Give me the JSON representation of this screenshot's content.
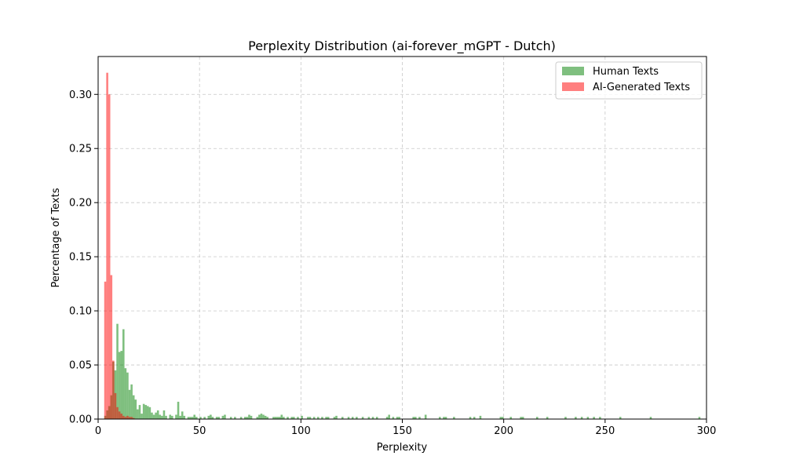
{
  "chart_data": {
    "type": "bar",
    "title": "Perplexity Distribution (ai-forever_mGPT - Dutch)",
    "xlabel": "Perplexity",
    "ylabel": "Percentage of Texts",
    "xlim": [
      0,
      300
    ],
    "ylim": [
      0,
      0.335
    ],
    "xticks": [
      0,
      50,
      100,
      150,
      200,
      250,
      300
    ],
    "xtick_labels": [
      "0",
      "50",
      "100",
      "150",
      "200",
      "250",
      "300"
    ],
    "yticks": [
      0.0,
      0.05,
      0.1,
      0.15,
      0.2,
      0.25,
      0.3
    ],
    "ytick_labels": [
      "0.00",
      "0.05",
      "0.10",
      "0.15",
      "0.20",
      "0.25",
      "0.30"
    ],
    "grid": true,
    "legend_position": "top-right",
    "bin_width": 1,
    "series": [
      {
        "name": "Human Texts",
        "color": "#008000",
        "opacity": 0.5,
        "x": [
          3,
          4,
          5,
          6,
          7,
          8,
          9,
          10,
          11,
          12,
          13,
          14,
          15,
          16,
          17,
          18,
          19,
          20,
          21,
          22,
          23,
          24,
          25,
          26,
          27,
          28,
          29,
          30,
          31,
          32,
          33,
          35,
          36,
          38,
          39,
          40,
          41,
          42,
          44,
          45,
          46,
          47,
          48,
          50,
          52,
          54,
          55,
          56,
          58,
          59,
          61,
          62,
          65,
          67,
          70,
          72,
          73,
          74,
          75,
          78,
          79,
          80,
          81,
          82,
          83,
          86,
          87,
          88,
          89,
          90,
          91,
          93,
          95,
          96,
          98,
          100,
          103,
          104,
          106,
          108,
          110,
          112,
          113,
          116,
          117,
          120,
          123,
          125,
          127,
          130,
          133,
          135,
          137,
          142,
          143,
          145,
          147,
          148,
          155,
          156,
          158,
          161,
          168,
          170,
          171,
          175,
          183,
          185,
          188,
          198,
          199,
          203,
          208,
          209,
          216,
          221,
          230,
          235,
          238,
          241,
          244,
          247,
          257,
          272,
          296
        ],
        "values": [
          0.003,
          0.008,
          0.012,
          0.022,
          0.053,
          0.045,
          0.088,
          0.062,
          0.063,
          0.083,
          0.047,
          0.043,
          0.027,
          0.032,
          0.022,
          0.018,
          0.009,
          0.013,
          0.005,
          0.014,
          0.013,
          0.012,
          0.011,
          0.006,
          0.004,
          0.006,
          0.008,
          0.004,
          0.003,
          0.008,
          0.003,
          0.004,
          0.003,
          0.004,
          0.016,
          0.003,
          0.007,
          0.003,
          0.002,
          0.002,
          0.002,
          0.004,
          0.002,
          0.002,
          0.002,
          0.003,
          0.004,
          0.002,
          0.002,
          0.002,
          0.003,
          0.004,
          0.002,
          0.002,
          0.002,
          0.002,
          0.002,
          0.004,
          0.003,
          0.002,
          0.004,
          0.005,
          0.004,
          0.003,
          0.002,
          0.002,
          0.002,
          0.002,
          0.002,
          0.004,
          0.002,
          0.002,
          0.002,
          0.002,
          0.002,
          0.003,
          0.002,
          0.002,
          0.002,
          0.002,
          0.002,
          0.002,
          0.002,
          0.002,
          0.003,
          0.002,
          0.002,
          0.002,
          0.002,
          0.002,
          0.002,
          0.002,
          0.002,
          0.002,
          0.004,
          0.002,
          0.002,
          0.002,
          0.002,
          0.002,
          0.002,
          0.004,
          0.002,
          0.002,
          0.002,
          0.002,
          0.002,
          0.002,
          0.003,
          0.002,
          0.002,
          0.002,
          0.002,
          0.002,
          0.002,
          0.002,
          0.002,
          0.002,
          0.002,
          0.002,
          0.002,
          0.002,
          0.002,
          0.002,
          0.002
        ]
      },
      {
        "name": "AI-Generated Texts",
        "color": "#ff0000",
        "opacity": 0.5,
        "x": [
          3,
          4,
          5,
          6,
          7,
          8,
          9,
          10,
          11,
          12,
          13,
          14,
          15,
          16,
          17
        ],
        "values": [
          0.127,
          0.32,
          0.3,
          0.133,
          0.054,
          0.024,
          0.011,
          0.007,
          0.005,
          0.003,
          0.002,
          0.003,
          0.002,
          0.002,
          0.001
        ]
      }
    ]
  }
}
